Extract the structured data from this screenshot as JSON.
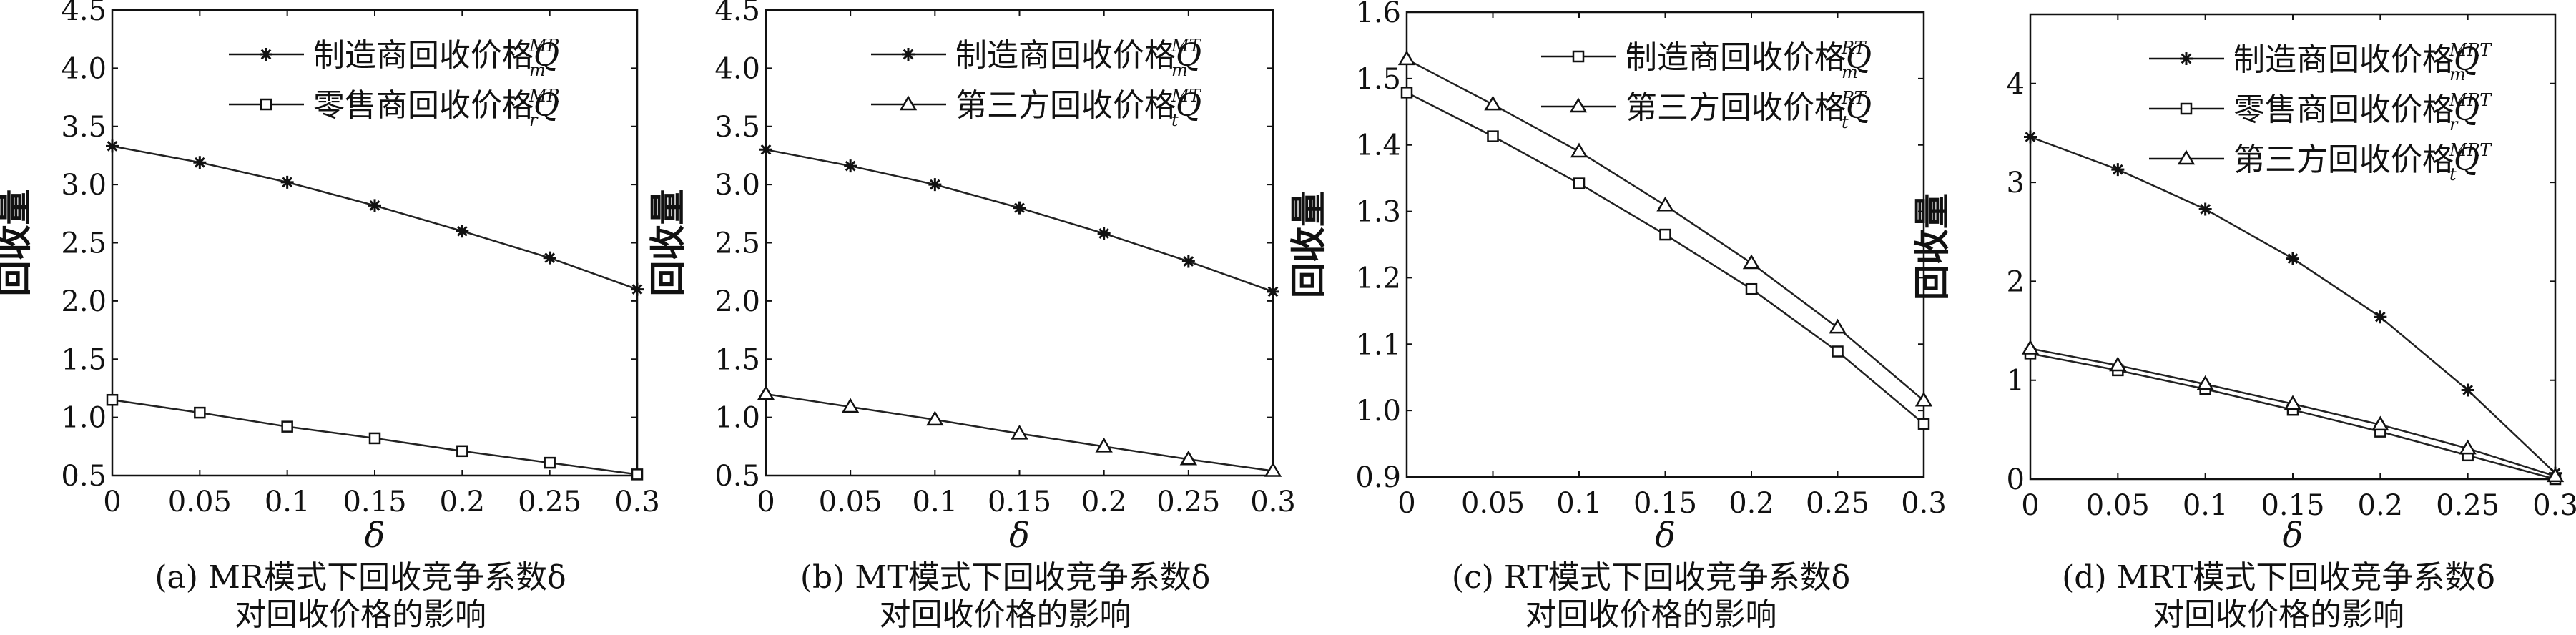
{
  "chart_data": [
    {
      "type": "line",
      "caption_line1": "(a) MR模式下回收竞争系数δ",
      "caption_line2": "对回收价格的影响",
      "xlabel": "δ",
      "ylabel": "回收量",
      "xlim": [
        0,
        0.3
      ],
      "ylim": [
        0.5,
        4.5
      ],
      "xticks": [
        "0",
        "0.05",
        "0.1",
        "0.15",
        "0.2",
        "0.25",
        "0.3"
      ],
      "yticks": [
        "0.5",
        "1.0",
        "1.5",
        "2.0",
        "2.5",
        "3.0",
        "3.5",
        "4.0",
        "4.5"
      ],
      "legend_position": "top-right",
      "x": [
        0,
        0.05,
        0.1,
        0.15,
        0.2,
        0.25,
        0.3
      ],
      "series": [
        {
          "name": "制造商回收价格",
          "symbol": "Q",
          "sup": "MR",
          "sub": "m",
          "marker": "star",
          "values": [
            3.33,
            3.19,
            3.02,
            2.82,
            2.6,
            2.37,
            2.1
          ]
        },
        {
          "name": "零售商回收价格",
          "symbol": "Q",
          "sup": "MR",
          "sub": "r",
          "marker": "square",
          "values": [
            1.15,
            1.04,
            0.92,
            0.82,
            0.71,
            0.61,
            0.51
          ]
        }
      ]
    },
    {
      "type": "line",
      "caption_line1": "(b) MT模式下回收竞争系数δ",
      "caption_line2": "对回收价格的影响",
      "xlabel": "δ",
      "ylabel": "回收量",
      "xlim": [
        0,
        0.3
      ],
      "ylim": [
        0.5,
        4.5
      ],
      "xticks": [
        "0",
        "0.05",
        "0.1",
        "0.15",
        "0.2",
        "0.25",
        "0.3"
      ],
      "yticks": [
        "0.5",
        "1.0",
        "1.5",
        "2.0",
        "2.5",
        "3.0",
        "3.5",
        "4.0",
        "4.5"
      ],
      "legend_position": "top-right",
      "x": [
        0,
        0.05,
        0.1,
        0.15,
        0.2,
        0.25,
        0.3
      ],
      "series": [
        {
          "name": "制造商回收价格",
          "symbol": "Q",
          "sup": "MT",
          "sub": "m",
          "marker": "star",
          "values": [
            3.3,
            3.16,
            3.0,
            2.8,
            2.58,
            2.34,
            2.08
          ]
        },
        {
          "name": "第三方回收价格",
          "symbol": "Q",
          "sup": "MT",
          "sub": "t",
          "marker": "triangle",
          "values": [
            1.2,
            1.09,
            0.98,
            0.86,
            0.75,
            0.64,
            0.54
          ]
        }
      ]
    },
    {
      "type": "line",
      "caption_line1": "(c) RT模式下回收竞争系数δ",
      "caption_line2": "对回收价格的影响",
      "xlabel": "δ",
      "ylabel": "回收量",
      "xlim": [
        0,
        0.3
      ],
      "ylim": [
        0.9,
        1.6
      ],
      "xticks": [
        "0",
        "0.05",
        "0.1",
        "0.15",
        "0.2",
        "0.25",
        "0.3"
      ],
      "yticks": [
        "0.9",
        "1.0",
        "1.1",
        "1.2",
        "1.3",
        "1.4",
        "1.5",
        "1.6"
      ],
      "legend_position": "top-right",
      "x": [
        0,
        0.05,
        0.1,
        0.15,
        0.2,
        0.25,
        0.3
      ],
      "series": [
        {
          "name": "制造商回收价格",
          "symbol": "Q",
          "sup": "RT",
          "sub": "m",
          "marker": "square",
          "values": [
            1.479,
            1.413,
            1.342,
            1.265,
            1.183,
            1.089,
            0.98
          ]
        },
        {
          "name": "第三方回收价格",
          "symbol": "Q",
          "sup": "RT",
          "sub": "t",
          "marker": "triangle",
          "values": [
            1.529,
            1.461,
            1.39,
            1.309,
            1.222,
            1.125,
            1.015
          ]
        }
      ]
    },
    {
      "type": "line",
      "caption_line1": "(d) MRT模式下回收竞争系数δ",
      "caption_line2": "对回收价格的影响",
      "xlabel": "δ",
      "ylabel": "回收量",
      "xlim": [
        0,
        0.3
      ],
      "ylim": [
        0,
        4.7
      ],
      "xticks": [
        "0",
        "0.05",
        "0.1",
        "0.15",
        "0.2",
        "0.25",
        "0.3"
      ],
      "yticks": [
        "0",
        "1",
        "2",
        "3",
        "4"
      ],
      "legend_position": "top-right",
      "x": [
        0,
        0.05,
        0.1,
        0.15,
        0.2,
        0.25,
        0.3
      ],
      "series": [
        {
          "name": "制造商回收价格",
          "symbol": "Q",
          "sup": "MRT",
          "sub": "m",
          "marker": "star",
          "values": [
            3.46,
            3.13,
            2.73,
            2.23,
            1.64,
            0.9,
            0.06
          ]
        },
        {
          "name": "零售商回收价格",
          "symbol": "Q",
          "sup": "MRT",
          "sub": "r",
          "marker": "square",
          "values": [
            1.27,
            1.1,
            0.91,
            0.7,
            0.48,
            0.24,
            0.0
          ]
        },
        {
          "name": "第三方回收价格",
          "symbol": "Q",
          "sup": "MRT",
          "sub": "t",
          "marker": "triangle",
          "values": [
            1.32,
            1.15,
            0.96,
            0.76,
            0.55,
            0.31,
            0.03
          ]
        }
      ]
    }
  ]
}
